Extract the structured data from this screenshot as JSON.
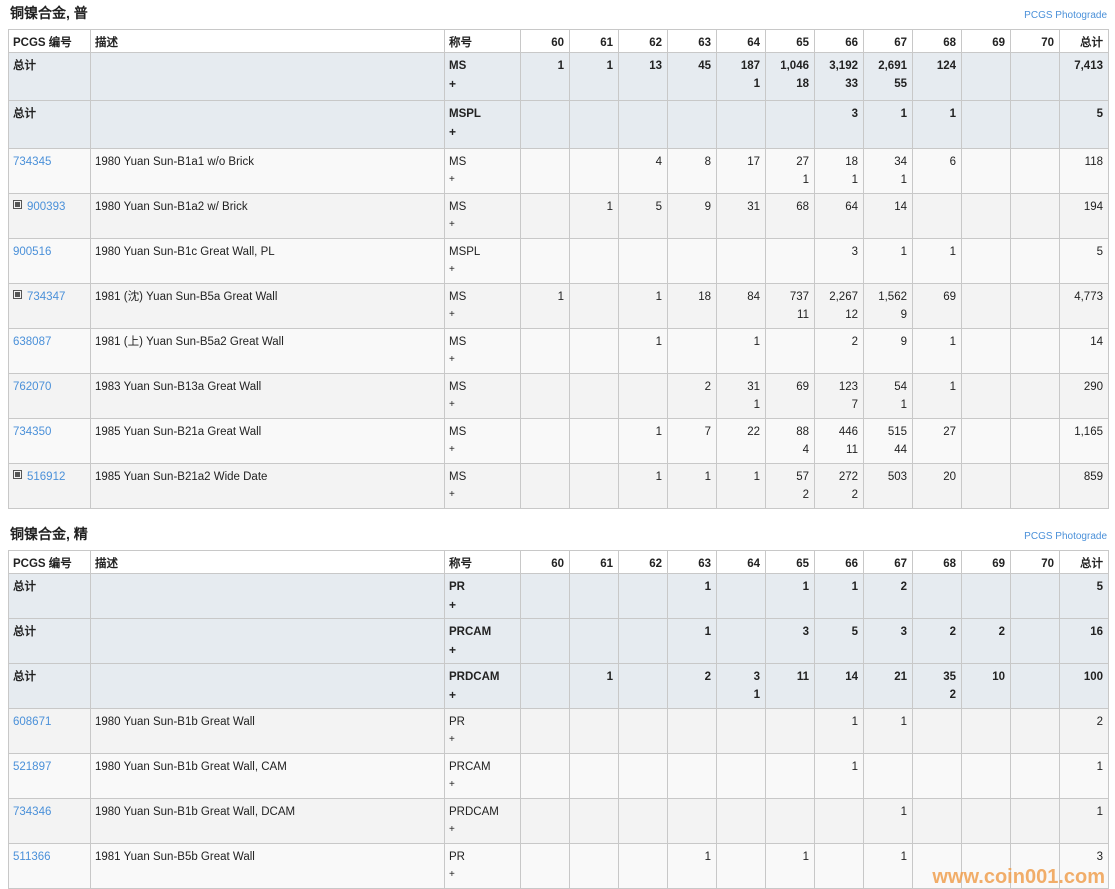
{
  "columns": {
    "id": "PCGS 编号",
    "desc": "描述",
    "desig": "称号",
    "grades": [
      "60",
      "61",
      "62",
      "63",
      "64",
      "65",
      "66",
      "67",
      "68",
      "69",
      "70"
    ],
    "total": "总计"
  },
  "photograde_label": "PCGS Photograde",
  "sections": [
    {
      "title": "铜镍合金, 普",
      "rows": [
        {
          "type": "total",
          "id": "总计",
          "desc": "",
          "desig": "MS",
          "plus": "+",
          "cells": [
            "1",
            "1",
            "13",
            "45",
            [
              "187",
              "1"
            ],
            [
              "1,046",
              "18"
            ],
            [
              "3,192",
              "33"
            ],
            [
              "2,691",
              "55"
            ],
            "124",
            "",
            ""
          ],
          "total": "7,413"
        },
        {
          "type": "total",
          "id": "总计",
          "desc": "",
          "desig": "MSPL",
          "plus": "+",
          "cells": [
            "",
            "",
            "",
            "",
            "",
            "",
            "3",
            "1",
            "1",
            "",
            ""
          ],
          "total": "5"
        },
        {
          "type": "item",
          "id": "734345",
          "expand": false,
          "desc": "1980 Yuan Sun-B1a1 w/o Brick",
          "desig": "MS",
          "plus": "+",
          "cells": [
            "",
            "",
            "4",
            "8",
            "17",
            [
              "27",
              "1"
            ],
            [
              "18",
              "1"
            ],
            [
              "34",
              "1"
            ],
            "6",
            "",
            ""
          ],
          "total": "118"
        },
        {
          "type": "item",
          "id": "900393",
          "expand": true,
          "desc": "1980 Yuan Sun-B1a2 w/ Brick",
          "desig": "MS",
          "plus": "+",
          "cells": [
            "",
            "1",
            "5",
            "9",
            "31",
            "68",
            "64",
            "14",
            "",
            "",
            ""
          ],
          "total": "194"
        },
        {
          "type": "item",
          "id": "900516",
          "expand": false,
          "desc": "1980 Yuan Sun-B1c Great Wall, PL",
          "desig": "MSPL",
          "plus": "+",
          "cells": [
            "",
            "",
            "",
            "",
            "",
            "",
            "3",
            "1",
            "1",
            "",
            ""
          ],
          "total": "5"
        },
        {
          "type": "item",
          "id": "734347",
          "expand": true,
          "desc": "1981 (沈) Yuan Sun-B5a Great Wall",
          "desig": "MS",
          "plus": "+",
          "cells": [
            "1",
            "",
            "1",
            "18",
            "84",
            [
              "737",
              "11"
            ],
            [
              "2,267",
              "12"
            ],
            [
              "1,562",
              "9"
            ],
            "69",
            "",
            ""
          ],
          "total": "4,773"
        },
        {
          "type": "item",
          "id": "638087",
          "expand": false,
          "desc": "1981 (上) Yuan Sun-B5a2 Great Wall",
          "desig": "MS",
          "plus": "+",
          "cells": [
            "",
            "",
            "1",
            "",
            "1",
            "",
            "2",
            "9",
            "1",
            "",
            ""
          ],
          "total": "14"
        },
        {
          "type": "item",
          "id": "762070",
          "expand": false,
          "desc": "1983 Yuan Sun-B13a Great Wall",
          "desig": "MS",
          "plus": "+",
          "cells": [
            "",
            "",
            "",
            "2",
            [
              "31",
              "1"
            ],
            "69",
            [
              "123",
              "7"
            ],
            [
              "54",
              "1"
            ],
            "1",
            "",
            ""
          ],
          "total": "290"
        },
        {
          "type": "item",
          "id": "734350",
          "expand": false,
          "desc": "1985 Yuan Sun-B21a Great Wall",
          "desig": "MS",
          "plus": "+",
          "cells": [
            "",
            "",
            "1",
            "7",
            "22",
            [
              "88",
              "4"
            ],
            [
              "446",
              "11"
            ],
            [
              "515",
              "44"
            ],
            "27",
            "",
            ""
          ],
          "total": "1,165"
        },
        {
          "type": "item",
          "id": "516912",
          "expand": true,
          "desc": "1985 Yuan Sun-B21a2 Wide Date",
          "desig": "MS",
          "plus": "+",
          "cells": [
            "",
            "",
            "1",
            "1",
            "1",
            [
              "57",
              "2"
            ],
            [
              "272",
              "2"
            ],
            "503",
            "20",
            "",
            ""
          ],
          "total": "859"
        }
      ]
    },
    {
      "title": "铜镍合金, 精",
      "rows": [
        {
          "type": "total",
          "id": "总计",
          "desc": "",
          "desig": "PR",
          "plus": "+",
          "cells": [
            "",
            "",
            "",
            "1",
            "",
            "1",
            "1",
            "2",
            "",
            "",
            ""
          ],
          "total": "5"
        },
        {
          "type": "total",
          "id": "总计",
          "desc": "",
          "desig": "PRCAM",
          "plus": "+",
          "cells": [
            "",
            "",
            "",
            "1",
            "",
            "3",
            "5",
            "3",
            "2",
            "2",
            ""
          ],
          "total": "16"
        },
        {
          "type": "total",
          "id": "总计",
          "desc": "",
          "desig": "PRDCAM",
          "plus": "+",
          "cells": [
            "",
            "1",
            "",
            "2",
            [
              "3",
              "1"
            ],
            "11",
            "14",
            "21",
            [
              "35",
              "2"
            ],
            "10",
            ""
          ],
          "total": "100"
        },
        {
          "type": "item",
          "id": "608671",
          "expand": false,
          "desc": "1980 Yuan Sun-B1b Great Wall",
          "desig": "PR",
          "plus": "+",
          "cells": [
            "",
            "",
            "",
            "",
            "",
            "",
            "1",
            "1",
            "",
            "",
            ""
          ],
          "total": "2"
        },
        {
          "type": "item",
          "id": "521897",
          "expand": false,
          "desc": "1980 Yuan Sun-B1b Great Wall, CAM",
          "desig": "PRCAM",
          "plus": "+",
          "cells": [
            "",
            "",
            "",
            "",
            "",
            "",
            "1",
            "",
            "",
            "",
            ""
          ],
          "total": "1"
        },
        {
          "type": "item",
          "id": "734346",
          "expand": false,
          "desc": "1980 Yuan Sun-B1b Great Wall, DCAM",
          "desig": "PRDCAM",
          "plus": "+",
          "cells": [
            "",
            "",
            "",
            "",
            "",
            "",
            "",
            "1",
            "",
            "",
            ""
          ],
          "total": "1"
        },
        {
          "type": "item",
          "id": "511366",
          "expand": false,
          "desc": "1981 Yuan Sun-B5b Great Wall",
          "desig": "PR",
          "plus": "+",
          "cells": [
            "",
            "",
            "",
            "1",
            "",
            "1",
            "",
            "1",
            "",
            "",
            ""
          ],
          "total": "3"
        }
      ]
    }
  ],
  "watermark": "www.coin001.com",
  "colors": {
    "link": "#4a90d9",
    "total_row_bg": "#e6ebf0",
    "watermark": "#f0a050"
  }
}
